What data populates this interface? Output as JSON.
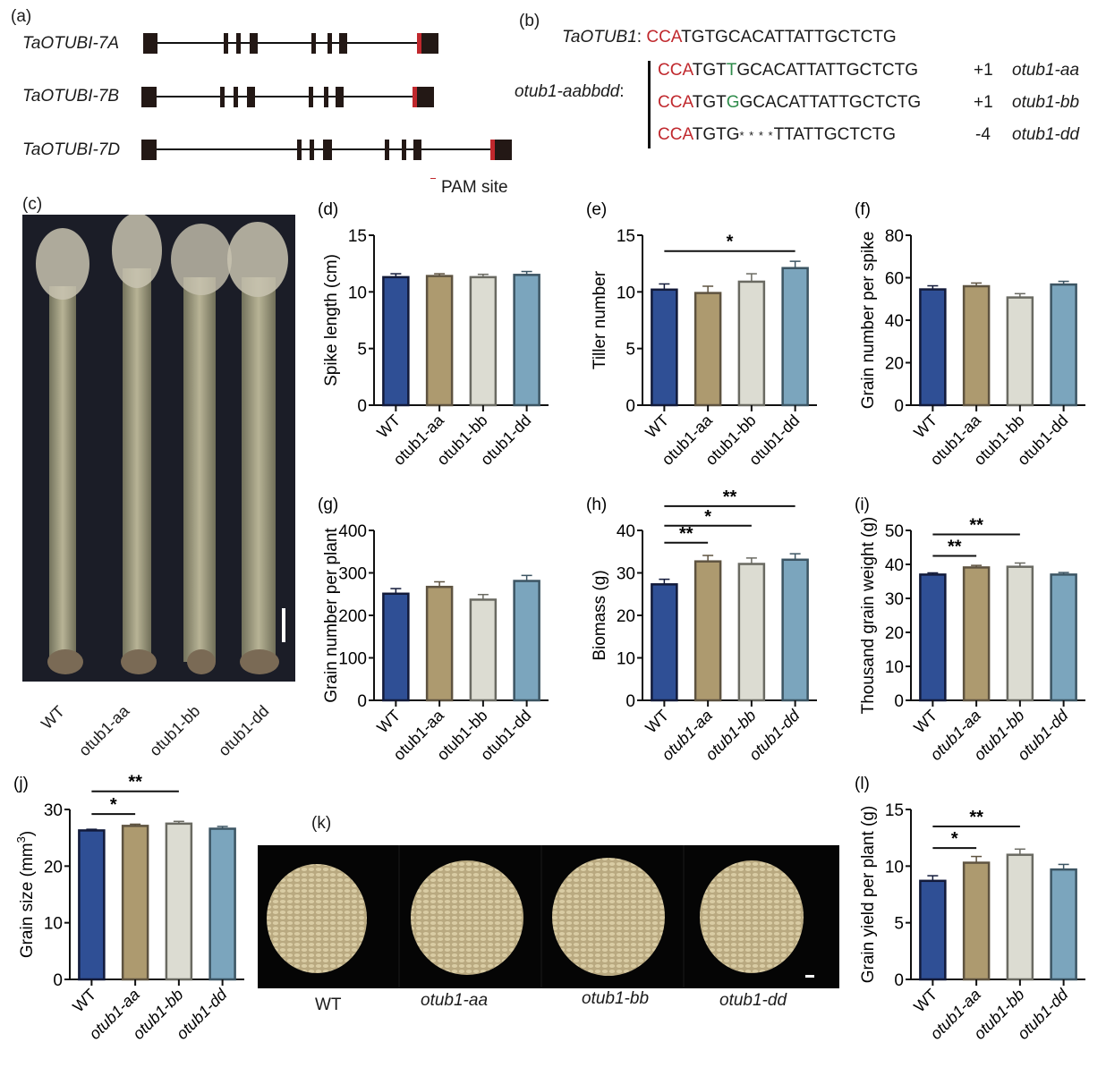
{
  "panels": {
    "a": {
      "label": "(a)",
      "genes": [
        {
          "name": "TaOTUBI-7A"
        },
        {
          "name": "TaOTUBI-7B"
        },
        {
          "name": "TaOTUBI-7D"
        }
      ],
      "legend": "PAM site",
      "colors": {
        "exon": "#231815",
        "pam": "#c0282d"
      }
    },
    "b": {
      "label": "(b)",
      "reference": {
        "name": "TaOTUB1",
        "colon": ":",
        "pam": "CCA",
        "rest": "TGTGCACATTATTGCTCTG"
      },
      "mutant_group": "otub1-aabbdd",
      "mutant_colon": ":",
      "mutants": [
        {
          "pam": "CCA",
          "pre": "TGT",
          "ins": "T",
          "post": "GCACATTATTGCTCTG",
          "change": "+1",
          "allele": "otub1-aa"
        },
        {
          "pam": "CCA",
          "pre": "TGT",
          "ins": "G",
          "post": "GCACATTATTGCTCTG",
          "change": "+1",
          "allele": "otub1-bb"
        },
        {
          "pam": "CCA",
          "pre": "TGTG",
          "ins": "* * * *",
          "post": "TTATTGCTCTG",
          "change": "-4",
          "allele": "otub1-dd"
        }
      ]
    },
    "c": {
      "label": "(c)",
      "genotypes": [
        "WT",
        "otub1-aa",
        "otub1-bb",
        "otub1-dd"
      ]
    },
    "k": {
      "label": "(k)",
      "genotypes": [
        "WT",
        "otub1-aa",
        "otub1-bb",
        "otub1-dd"
      ]
    }
  },
  "bar_colors": {
    "fills": [
      "#2f4f95",
      "#ad9a6f",
      "#dcdcd2",
      "#7ba5bd"
    ],
    "strokes": [
      "#121a3a",
      "#5e5340",
      "#6a6a62",
      "#3c5563"
    ]
  },
  "chart_data": [
    {
      "panel": "(d)",
      "type": "bar",
      "categories": [
        "WT",
        "otub1-aa",
        "otub1-bb",
        "otub1-dd"
      ],
      "values": [
        11.3,
        11.4,
        11.3,
        11.5
      ],
      "errors": [
        0.3,
        0.2,
        0.25,
        0.3
      ],
      "ylabel": "Spike length (cm)",
      "ylim": [
        0,
        15
      ],
      "yticks": [
        0,
        5,
        10,
        15
      ],
      "significance": []
    },
    {
      "panel": "(e)",
      "type": "bar",
      "categories": [
        "WT",
        "otub1-aa",
        "otub1-bb",
        "otub1-dd"
      ],
      "values": [
        10.2,
        9.9,
        10.9,
        12.1
      ],
      "errors": [
        0.5,
        0.6,
        0.7,
        0.6
      ],
      "ylabel": "Tiller number",
      "ylim": [
        0,
        15
      ],
      "yticks": [
        0,
        5,
        10,
        15
      ],
      "significance": [
        {
          "from": 0,
          "to": 3,
          "label": "*",
          "y": 13.6
        }
      ]
    },
    {
      "panel": "(f)",
      "type": "bar",
      "categories": [
        "WT",
        "otub1-aa",
        "otub1-bb",
        "otub1-dd"
      ],
      "values": [
        54.5,
        56,
        50.7,
        56.8
      ],
      "errors": [
        1.7,
        1.5,
        1.8,
        1.5
      ],
      "ylabel": "Grain number per spike",
      "ylim": [
        0,
        80
      ],
      "yticks": [
        0,
        20,
        40,
        60,
        80
      ],
      "significance": []
    },
    {
      "panel": "(g)",
      "type": "bar",
      "categories": [
        "WT",
        "otub1-aa",
        "otub1-bb",
        "otub1-dd"
      ],
      "values": [
        251,
        267,
        237,
        281
      ],
      "errors": [
        12,
        12,
        12,
        13
      ],
      "ylabel": "Grain number per plant",
      "ylim": [
        0,
        400
      ],
      "yticks": [
        0,
        100,
        200,
        300,
        400
      ],
      "significance": []
    },
    {
      "panel": "(h)",
      "type": "bar",
      "categories": [
        "WT",
        "otub1-aa",
        "otub1-bb",
        "otub1-dd"
      ],
      "values": [
        27.3,
        32.7,
        32.1,
        33.1
      ],
      "errors": [
        1.2,
        1.4,
        1.4,
        1.4
      ],
      "ylabel": "Biomass (g)",
      "ylim": [
        0,
        40
      ],
      "yticks": [
        0,
        10,
        20,
        30,
        40
      ],
      "significance": [
        {
          "from": 0,
          "to": 1,
          "label": "**",
          "y": 37.1
        },
        {
          "from": 0,
          "to": 2,
          "label": "*",
          "y": 41.1
        },
        {
          "from": 0,
          "to": 3,
          "label": "**",
          "y": 45.7
        }
      ]
    },
    {
      "panel": "(i)",
      "type": "bar",
      "categories": [
        "WT",
        "otub1-aa",
        "otub1-bb",
        "otub1-dd"
      ],
      "values": [
        37,
        39.1,
        39.3,
        37
      ],
      "errors": [
        0.5,
        0.6,
        1.1,
        0.6
      ],
      "ylabel": "Thousand grain weight (g)",
      "ylim": [
        0,
        50
      ],
      "yticks": [
        0,
        10,
        20,
        30,
        40,
        50
      ],
      "significance": [
        {
          "from": 0,
          "to": 1,
          "label": "**",
          "y": 42.5
        },
        {
          "from": 0,
          "to": 2,
          "label": "**",
          "y": 48.8
        }
      ]
    },
    {
      "panel": "(j)",
      "type": "bar",
      "categories": [
        "WT",
        "otub1-aa",
        "otub1-bb",
        "otub1-dd"
      ],
      "values": [
        26.3,
        27.1,
        27.5,
        26.6
      ],
      "errors": [
        0.2,
        0.3,
        0.4,
        0.4
      ],
      "ylabel": "Grain size (mm3)",
      "ylabel_main": "Grain size (mm",
      "ylabel_sup": "3",
      "ylabel_end": ")",
      "ylim": [
        0,
        30
      ],
      "yticks": [
        0,
        10,
        20,
        30
      ],
      "significance": [
        {
          "from": 0,
          "to": 1,
          "label": "*",
          "y": 29.2
        },
        {
          "from": 0,
          "to": 2,
          "label": "**",
          "y": 33.2
        }
      ]
    },
    {
      "panel": "(l)",
      "type": "bar",
      "categories": [
        "WT",
        "otub1-aa",
        "otub1-bb",
        "otub1-dd"
      ],
      "values": [
        8.7,
        10.3,
        11,
        9.7
      ],
      "errors": [
        0.45,
        0.55,
        0.5,
        0.45
      ],
      "ylabel": "Grain yield per plant  (g)",
      "ylim": [
        0,
        15
      ],
      "yticks": [
        0,
        5,
        10,
        15
      ],
      "significance": [
        {
          "from": 0,
          "to": 1,
          "label": "*",
          "y": 11.6
        },
        {
          "from": 0,
          "to": 2,
          "label": "**",
          "y": 13.5
        }
      ]
    }
  ]
}
